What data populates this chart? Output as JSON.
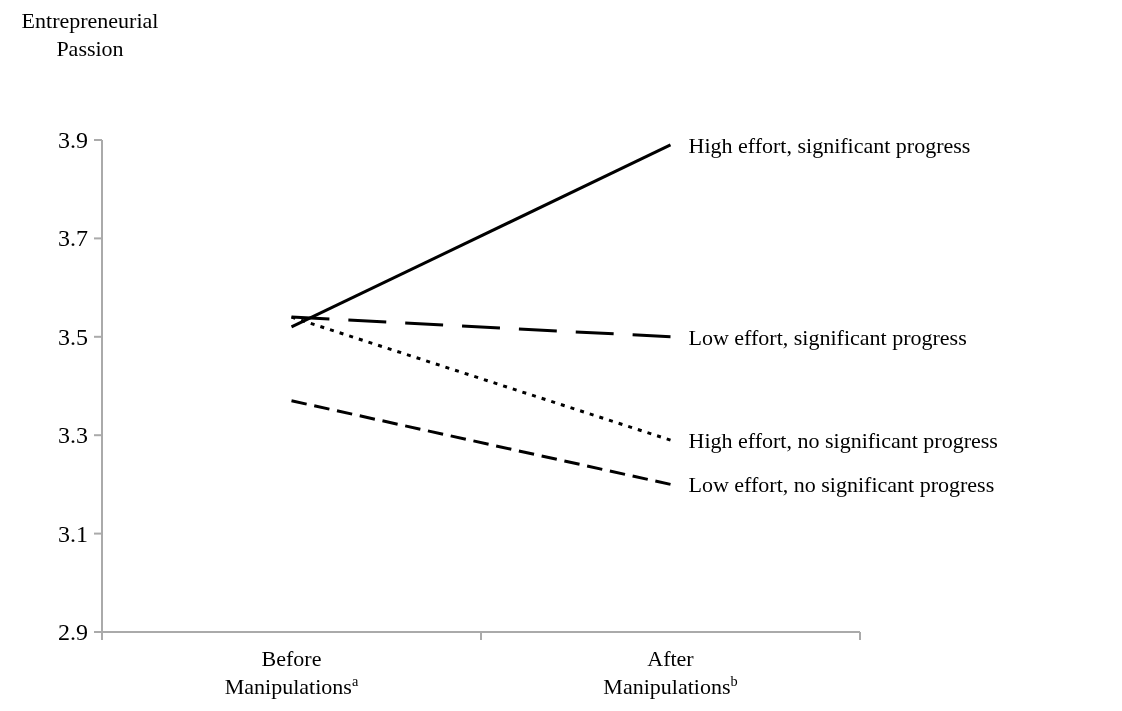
{
  "chart_data": {
    "type": "line",
    "ylabel": "Entrepreneurial Passion",
    "categories": [
      "Before Manipulations$^{a}$",
      "After Manipulations$^{b}$"
    ],
    "series": [
      {
        "name": "High effort, significant progress",
        "color": "#000000",
        "line_style": "solid",
        "values": [
          3.52,
          3.89
        ]
      },
      {
        "name": "Low effort, significant progress",
        "color": "#000000",
        "line_style": "dashed",
        "values": [
          3.54,
          3.5
        ]
      },
      {
        "name": "High effort, no significant progress",
        "color": "#000000",
        "line_style": "dotted",
        "values": [
          3.54,
          3.29
        ]
      },
      {
        "name": "Low effort, no significant progress",
        "color": "#000000",
        "line_style": "dashed",
        "values": [
          3.37,
          3.2
        ]
      }
    ],
    "ylim": [
      2.9,
      3.9
    ],
    "yticks": [
      2.9,
      3.1,
      3.3,
      3.5,
      3.7,
      3.9
    ],
    "grid": false,
    "legend": false,
    "marker": "none"
  }
}
